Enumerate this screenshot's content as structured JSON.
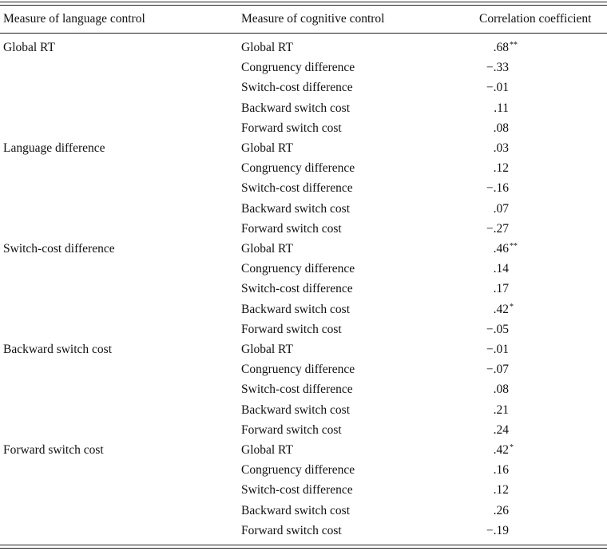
{
  "table": {
    "header": [
      "Measure of language control",
      "Measure of cognitive control",
      "Correlation coefficient"
    ],
    "groups": [
      {
        "measure": "Global RT",
        "rows": [
          {
            "measure": "Global RT",
            "r": ".68",
            "sig": "**"
          },
          {
            "measure": "Congruency difference",
            "r": "−.33"
          },
          {
            "measure": "Switch-cost difference",
            "r": "−.01"
          },
          {
            "measure": "Backward switch cost",
            "r": ".11"
          },
          {
            "measure": "Forward switch cost",
            "r": ".08"
          }
        ]
      },
      {
        "measure": "Language difference",
        "rows": [
          {
            "measure": "Global RT",
            "r": ".03"
          },
          {
            "measure": "Congruency difference",
            "r": ".12"
          },
          {
            "measure": "Switch-cost difference",
            "r": "−.16"
          },
          {
            "measure": "Backward switch cost",
            "r": ".07"
          },
          {
            "measure": "Forward switch cost",
            "r": "−.27"
          }
        ]
      },
      {
        "measure": "Switch-cost difference",
        "rows": [
          {
            "measure": "Global RT",
            "r": ".46",
            "sig": "**"
          },
          {
            "measure": "Congruency difference",
            "r": ".14"
          },
          {
            "measure": "Switch-cost difference",
            "r": ".17"
          },
          {
            "measure": "Backward switch cost",
            "r": ".42",
            "sig": "*"
          },
          {
            "measure": "Forward switch cost",
            "r": "−.05"
          }
        ]
      },
      {
        "measure": "Backward switch cost",
        "rows": [
          {
            "measure": "Global RT",
            "r": "−.01"
          },
          {
            "measure": "Congruency difference",
            "r": "−.07"
          },
          {
            "measure": "Switch-cost difference",
            "r": ".08"
          },
          {
            "measure": "Backward switch cost",
            "r": ".21"
          },
          {
            "measure": "Forward switch cost",
            "r": ".24"
          }
        ]
      },
      {
        "measure": "Forward switch cost",
        "rows": [
          {
            "measure": "Global RT",
            "r": ".42",
            "sig": "*"
          },
          {
            "measure": "Congruency difference",
            "r": ".16"
          },
          {
            "measure": "Switch-cost difference",
            "r": ".12"
          },
          {
            "measure": "Backward switch cost",
            "r": ".26"
          },
          {
            "measure": "Forward switch cost",
            "r": "−.19"
          }
        ]
      }
    ]
  }
}
